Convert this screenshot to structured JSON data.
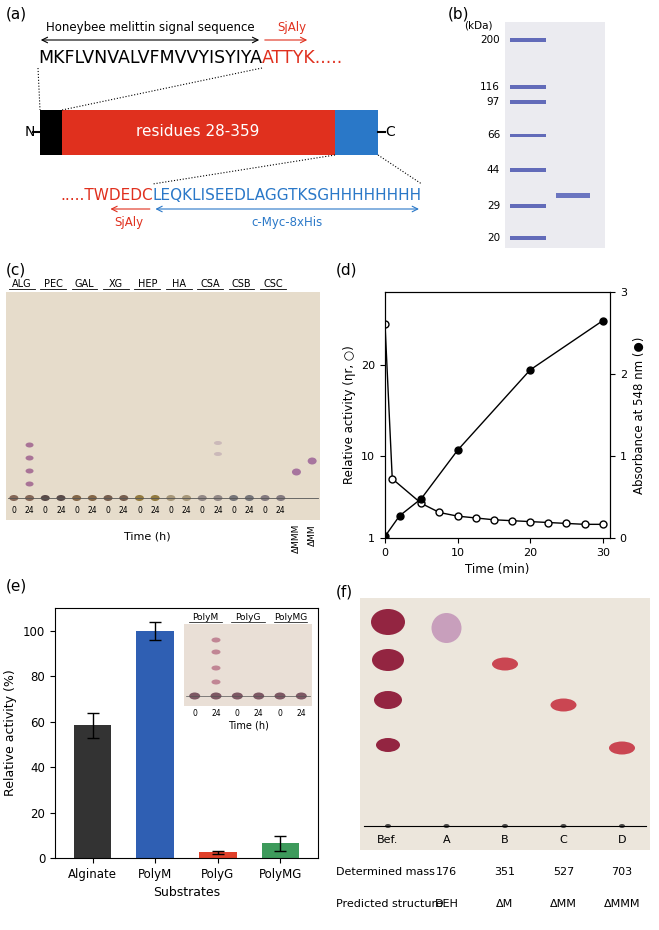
{
  "panel_labels": [
    "(a)",
    "(b)",
    "(c)",
    "(d)",
    "(e)",
    "(f)"
  ],
  "construct_diagram": {
    "signal_label": "Honeybee melittin signal sequence",
    "signal_sequence": "MKFLVNVALVFMVVYISYIYA",
    "protein_label": "SjAly",
    "protein_start": "ATTYK.....",
    "protein_end": ".....TWDEDC",
    "tag_sequence": "LEQKLISEEDLAGGTKSGHHHHHHHH",
    "tag_label": "c-Myc-8xHis",
    "domain_label": "residues 28-359",
    "n_terminus": "N",
    "c_terminus": "C"
  },
  "gel": {
    "unit_label": "(kDa)",
    "markers": [
      200,
      116,
      97,
      66,
      44,
      29,
      20
    ]
  },
  "tlc_substrates": {
    "lanes": [
      "ALG",
      "PEC",
      "GAL",
      "XG",
      "HEP",
      "HA",
      "CSA",
      "CSB",
      "CSC"
    ],
    "times": [
      0,
      24
    ],
    "standards": [
      "ΔMMM",
      "ΔMM"
    ],
    "xlabel": "Time (h)"
  },
  "chart_data": [
    {
      "type": "line",
      "xlabel": "Time (min)",
      "ylabel": "Relative activity (ηr, ○)",
      "y2label": "Absorbance at 548 nm (●)",
      "xlim": [
        0,
        31
      ],
      "xticks": [
        0,
        10,
        20,
        30
      ],
      "ylim": [
        1,
        28
      ],
      "yticks": [
        1,
        10,
        20
      ],
      "y2lim": [
        0,
        3
      ],
      "y2ticks": [
        0,
        1,
        2,
        3
      ],
      "series": [
        {
          "color": "#000000",
          "marker": "open_circle",
          "x": [
            0,
            1,
            5,
            7.5,
            10,
            12.5,
            15,
            17.5,
            20,
            22.5,
            25,
            27.5,
            30
          ],
          "values": [
            24.5,
            7.5,
            4.8,
            3.8,
            3.4,
            3.2,
            3.0,
            2.9,
            2.8,
            2.7,
            2.6,
            2.5,
            2.5
          ]
        },
        {
          "color": "#000000",
          "marker": "filled_circle",
          "axis": "y2",
          "x": [
            0,
            2,
            5,
            10,
            20,
            30
          ],
          "values": [
            0.02,
            0.27,
            0.48,
            1.07,
            2.05,
            2.65
          ]
        }
      ]
    },
    {
      "type": "bar",
      "xlabel": "Substrates",
      "ylabel": "Relative activity (%)",
      "categories": [
        "Alginate",
        "PolyM",
        "PolyG",
        "PolyMG"
      ],
      "values": [
        58.5,
        100,
        2.5,
        6.5
      ],
      "errors": [
        5.5,
        4,
        0.8,
        3.2
      ],
      "colors": [
        "#333333",
        "#2f5fb3",
        "#e0402a",
        "#3d9a5b"
      ],
      "ylim": [
        0,
        110
      ],
      "yticks": [
        0,
        20,
        40,
        60,
        80,
        100
      ]
    }
  ],
  "tlc_inset": {
    "lanes": [
      "PolyM",
      "PolyG",
      "PolyMG"
    ],
    "times": [
      0,
      24
    ],
    "xlabel": "Time (h)"
  },
  "tlc_products": {
    "lanes": [
      "Bef.",
      "A",
      "B",
      "C",
      "D"
    ],
    "mass_label": "Determined mass",
    "masses": [
      176,
      351,
      527,
      703
    ],
    "structure_label": "Predicted structure",
    "structures": [
      "DEH",
      "ΔM",
      "ΔMM",
      "ΔMMM"
    ]
  }
}
